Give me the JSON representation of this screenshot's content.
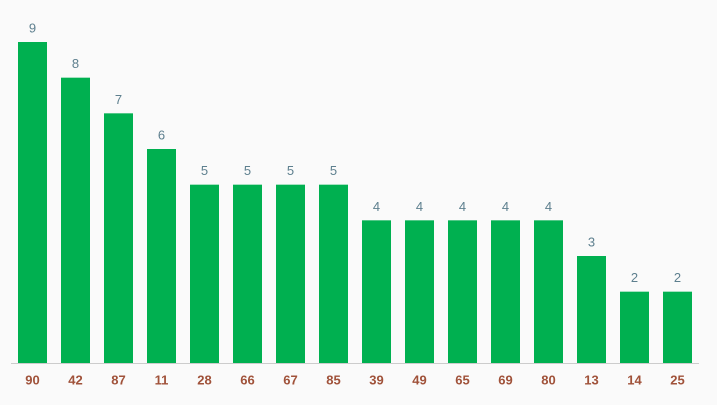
{
  "chart_data": {
    "type": "bar",
    "categories": [
      "90",
      "42",
      "87",
      "11",
      "28",
      "66",
      "67",
      "85",
      "39",
      "49",
      "65",
      "69",
      "80",
      "13",
      "14",
      "25"
    ],
    "values": [
      9,
      8,
      7,
      6,
      5,
      5,
      5,
      5,
      4,
      4,
      4,
      4,
      4,
      3,
      2,
      2
    ],
    "color": "#00b050"
  }
}
